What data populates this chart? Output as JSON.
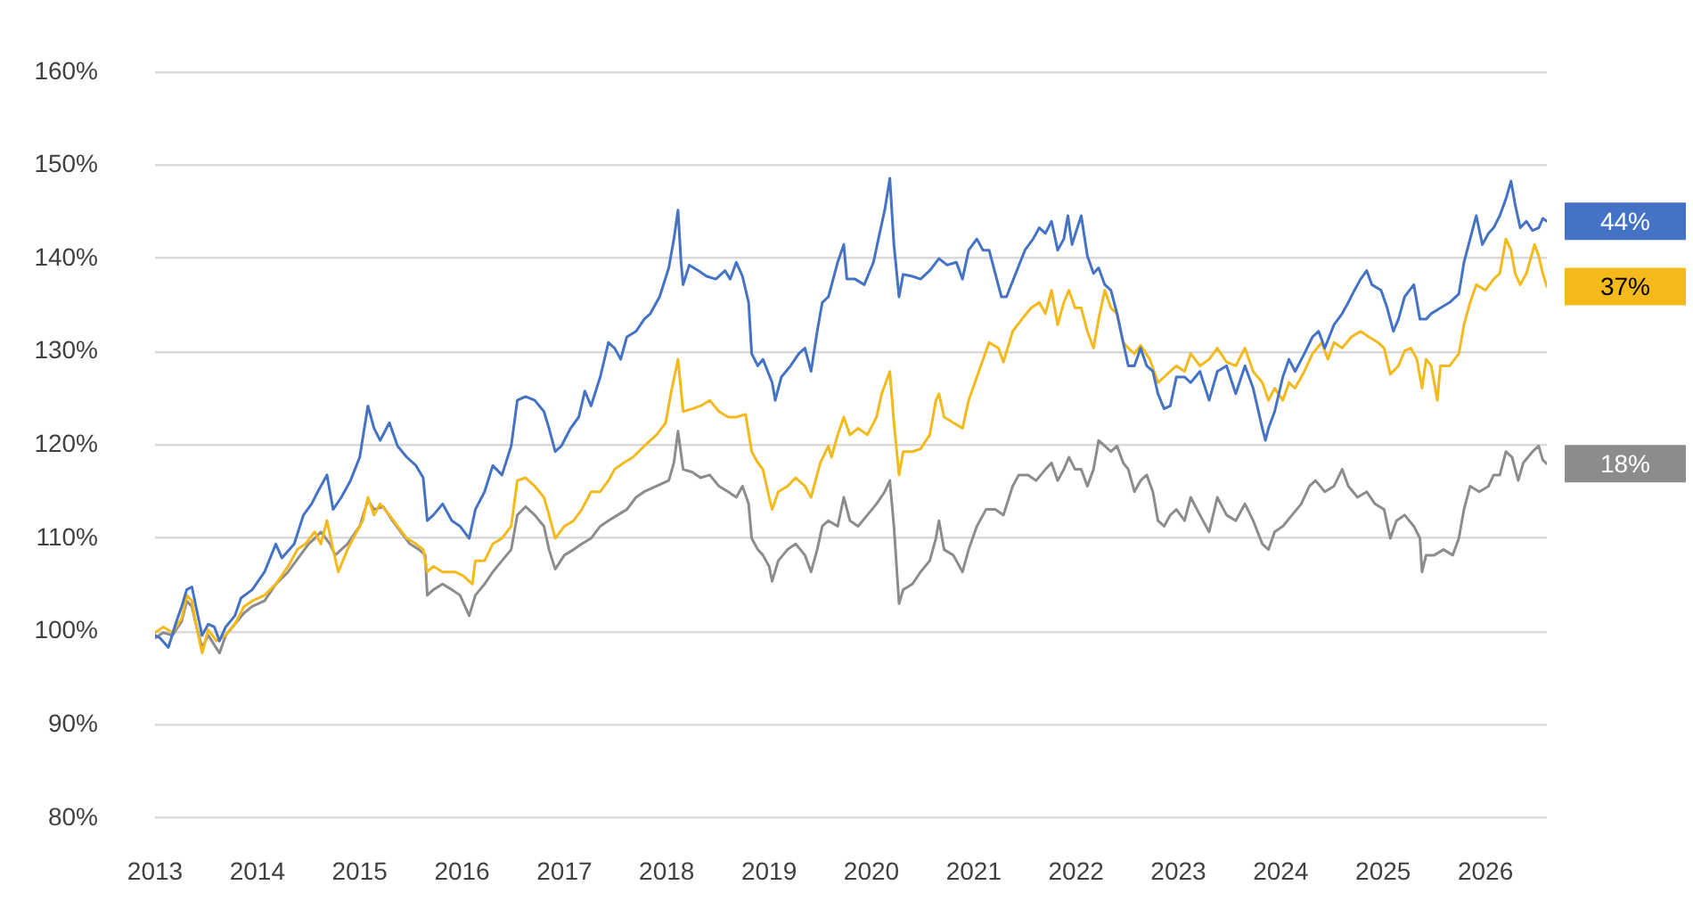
{
  "chart_data": {
    "type": "line",
    "grid": "y",
    "xlim": [
      2013,
      2026.6
    ],
    "xticks": [
      2013,
      2014,
      2015,
      2016,
      2017,
      2018,
      2019,
      2020,
      2021,
      2022,
      2023,
      2024,
      2025,
      2026
    ],
    "ylim": [
      80,
      160
    ],
    "yticks": [
      {
        "value": 80,
        "label": "80%"
      },
      {
        "value": 90,
        "label": "90%"
      },
      {
        "value": 100,
        "label": "100%"
      },
      {
        "value": 110,
        "label": "110%"
      },
      {
        "value": 120,
        "label": "120%"
      },
      {
        "value": 130,
        "label": "130%"
      },
      {
        "value": 140,
        "label": "140%"
      },
      {
        "value": 150,
        "label": "150%"
      },
      {
        "value": 160,
        "label": "160%"
      }
    ],
    "annotations": [
      "44%",
      "37%",
      "18%"
    ],
    "series": [
      {
        "color": "#4472c4",
        "x": [
          2013.0,
          2013.05,
          2013.13,
          2013.2,
          2013.26,
          2013.31,
          2013.36,
          2013.4,
          2013.46,
          2013.52,
          2013.58,
          2013.63,
          2013.69,
          2013.78,
          2013.84,
          2013.95,
          2014.07,
          2014.18,
          2014.24,
          2014.36,
          2014.45,
          2014.53,
          2014.59,
          2014.68,
          2014.74,
          2014.82,
          2014.91,
          2015.0,
          2015.08,
          2015.14,
          2015.2,
          2015.29,
          2015.37,
          2015.46,
          2015.55,
          2015.62,
          2015.66,
          2015.72,
          2015.81,
          2015.9,
          2015.98,
          2016.07,
          2016.13,
          2016.22,
          2016.3,
          2016.39,
          2016.48,
          2016.54,
          2016.62,
          2016.71,
          2016.8,
          2016.85,
          2016.91,
          2016.97,
          2017.06,
          2017.14,
          2017.2,
          2017.26,
          2017.35,
          2017.43,
          2017.49,
          2017.55,
          2017.61,
          2017.7,
          2017.78,
          2017.84,
          2017.93,
          2018.02,
          2018.07,
          2018.11,
          2018.14,
          2018.16,
          2018.22,
          2018.31,
          2018.39,
          2018.48,
          2018.57,
          2018.62,
          2018.68,
          2018.74,
          2018.8,
          2018.83,
          2018.89,
          2018.94,
          2019.03,
          2019.06,
          2019.12,
          2019.21,
          2019.29,
          2019.35,
          2019.41,
          2019.47,
          2019.52,
          2019.58,
          2019.67,
          2019.73,
          2019.76,
          2019.84,
          2019.93,
          2020.02,
          2020.08,
          2020.13,
          2020.18,
          2020.22,
          2020.27,
          2020.31,
          2020.4,
          2020.48,
          2020.57,
          2020.66,
          2020.74,
          2020.83,
          2020.89,
          2020.95,
          2021.03,
          2021.09,
          2021.15,
          2021.21,
          2021.27,
          2021.32,
          2021.41,
          2021.5,
          2021.58,
          2021.64,
          2021.7,
          2021.76,
          2021.82,
          2021.88,
          2021.92,
          2021.96,
          2022.05,
          2022.11,
          2022.17,
          2022.22,
          2022.28,
          2022.34,
          2022.4,
          2022.46,
          2022.51,
          2022.57,
          2022.63,
          2022.69,
          2022.75,
          2022.8,
          2022.86,
          2022.92,
          2022.98,
          2023.06,
          2023.12,
          2023.21,
          2023.3,
          2023.38,
          2023.47,
          2023.56,
          2023.65,
          2023.73,
          2023.82,
          2023.85,
          2023.88,
          2023.94,
          2024.02,
          2024.08,
          2024.14,
          2024.23,
          2024.31,
          2024.37,
          2024.43,
          2024.52,
          2024.6,
          2024.66,
          2024.72,
          2024.78,
          2024.84,
          2024.89,
          2024.98,
          2025.04,
          2025.1,
          2025.15,
          2025.21,
          2025.3,
          2025.36,
          2025.42,
          2025.47,
          2025.56,
          2025.65,
          2025.74,
          2025.79,
          2025.85,
          2025.91,
          2025.97,
          2026.03,
          2026.08,
          2026.14,
          2026.2,
          2026.25,
          2026.29,
          2026.34,
          2026.4,
          2026.46,
          2026.52,
          2026.56,
          2026.6
        ],
        "values": [
          99.6,
          99.3,
          98.3,
          100.8,
          102.7,
          104.5,
          104.8,
          102.7,
          99.6,
          100.8,
          100.5,
          99.0,
          100.5,
          101.7,
          103.6,
          104.5,
          106.4,
          109.4,
          107.9,
          109.4,
          112.5,
          113.7,
          115.0,
          116.8,
          113.1,
          114.4,
          116.2,
          118.7,
          124.2,
          121.8,
          120.5,
          122.4,
          119.9,
          118.7,
          117.8,
          116.5,
          111.9,
          112.5,
          113.7,
          111.9,
          111.3,
          110.0,
          113.1,
          115.0,
          117.8,
          116.8,
          119.9,
          124.8,
          125.2,
          124.8,
          123.6,
          121.8,
          119.3,
          119.9,
          121.8,
          123.0,
          125.8,
          124.2,
          127.3,
          131.0,
          130.4,
          129.2,
          131.6,
          132.2,
          133.5,
          134.1,
          135.9,
          139.0,
          142.1,
          145.2,
          139.6,
          137.2,
          139.3,
          138.7,
          138.1,
          137.8,
          138.7,
          137.8,
          139.6,
          138.1,
          135.3,
          129.8,
          128.5,
          129.2,
          126.7,
          124.8,
          127.3,
          128.5,
          129.8,
          130.4,
          127.9,
          132.2,
          135.3,
          135.9,
          139.6,
          141.5,
          137.8,
          137.8,
          137.2,
          139.6,
          142.7,
          145.2,
          148.6,
          141.5,
          135.9,
          138.3,
          138.1,
          137.8,
          138.7,
          140.0,
          139.3,
          139.6,
          137.8,
          140.9,
          142.1,
          140.9,
          140.9,
          138.4,
          135.9,
          135.9,
          138.4,
          140.9,
          142.1,
          143.3,
          142.7,
          144.0,
          140.9,
          142.1,
          144.6,
          141.5,
          144.6,
          140.3,
          138.4,
          139.0,
          137.2,
          136.6,
          134.1,
          131.0,
          128.5,
          128.5,
          130.4,
          128.5,
          127.9,
          125.5,
          123.9,
          124.2,
          127.3,
          127.3,
          126.7,
          127.9,
          124.8,
          127.9,
          128.5,
          125.5,
          128.5,
          126.1,
          121.8,
          120.5,
          121.8,
          123.6,
          127.3,
          129.2,
          127.9,
          129.8,
          131.6,
          132.2,
          130.4,
          132.9,
          134.1,
          135.3,
          136.6,
          137.8,
          138.7,
          137.2,
          136.6,
          134.7,
          132.2,
          133.5,
          135.9,
          137.2,
          133.5,
          133.5,
          134.1,
          134.7,
          135.3,
          136.2,
          139.6,
          142.1,
          144.6,
          141.5,
          142.7,
          143.3,
          144.6,
          146.4,
          148.3,
          145.8,
          143.3,
          144.0,
          143.0,
          143.3,
          144.3,
          144.0
        ]
      },
      {
        "color": "#f4b91b",
        "x": [
          2013.0,
          2013.08,
          2013.17,
          2013.26,
          2013.31,
          2013.36,
          2013.4,
          2013.46,
          2013.52,
          2013.6,
          2013.69,
          2013.78,
          2013.87,
          2013.95,
          2014.07,
          2014.18,
          2014.3,
          2014.39,
          2014.47,
          2014.56,
          2014.62,
          2014.68,
          2014.74,
          2014.79,
          2014.88,
          2014.97,
          2015.03,
          2015.08,
          2015.14,
          2015.2,
          2015.29,
          2015.37,
          2015.46,
          2015.55,
          2015.62,
          2015.66,
          2015.72,
          2015.81,
          2015.93,
          2016.01,
          2016.1,
          2016.13,
          2016.22,
          2016.3,
          2016.39,
          2016.48,
          2016.54,
          2016.62,
          2016.71,
          2016.8,
          2016.85,
          2016.91,
          2017.0,
          2017.09,
          2017.17,
          2017.26,
          2017.35,
          2017.43,
          2017.49,
          2017.58,
          2017.67,
          2017.78,
          2017.9,
          2017.99,
          2018.04,
          2018.11,
          2018.16,
          2018.25,
          2018.33,
          2018.42,
          2018.51,
          2018.6,
          2018.68,
          2018.77,
          2018.83,
          2018.89,
          2018.94,
          2019.0,
          2019.03,
          2019.09,
          2019.18,
          2019.26,
          2019.35,
          2019.41,
          2019.5,
          2019.58,
          2019.61,
          2019.67,
          2019.73,
          2019.79,
          2019.87,
          2019.96,
          2020.05,
          2020.1,
          2020.18,
          2020.22,
          2020.27,
          2020.31,
          2020.4,
          2020.48,
          2020.57,
          2020.63,
          2020.66,
          2020.71,
          2020.8,
          2020.89,
          2020.95,
          2021.03,
          2021.15,
          2021.24,
          2021.29,
          2021.38,
          2021.47,
          2021.56,
          2021.64,
          2021.7,
          2021.76,
          2021.82,
          2021.88,
          2021.93,
          2021.99,
          2022.05,
          2022.11,
          2022.17,
          2022.22,
          2022.28,
          2022.34,
          2022.4,
          2022.46,
          2022.51,
          2022.57,
          2022.63,
          2022.72,
          2022.8,
          2022.86,
          2022.92,
          2022.98,
          2023.06,
          2023.12,
          2023.21,
          2023.3,
          2023.38,
          2023.47,
          2023.56,
          2023.65,
          2023.73,
          2023.82,
          2023.88,
          2023.94,
          2024.02,
          2024.08,
          2024.14,
          2024.23,
          2024.31,
          2024.4,
          2024.46,
          2024.52,
          2024.6,
          2024.69,
          2024.78,
          2024.86,
          2024.95,
          2025.01,
          2025.07,
          2025.15,
          2025.21,
          2025.27,
          2025.33,
          2025.38,
          2025.42,
          2025.47,
          2025.53,
          2025.56,
          2025.65,
          2025.74,
          2025.79,
          2025.85,
          2025.91,
          2026.0,
          2026.08,
          2026.14,
          2026.2,
          2026.25,
          2026.29,
          2026.34,
          2026.4,
          2026.48,
          2026.52,
          2026.56,
          2026.6
        ],
        "values": [
          99.9,
          100.5,
          99.9,
          101.4,
          103.9,
          103.3,
          100.8,
          97.7,
          100.2,
          99.0,
          99.6,
          100.8,
          102.7,
          103.3,
          103.9,
          105.1,
          107.0,
          108.8,
          109.4,
          110.7,
          109.4,
          111.9,
          108.8,
          106.4,
          108.8,
          110.7,
          111.9,
          114.4,
          112.5,
          113.7,
          112.5,
          111.3,
          110.0,
          109.4,
          108.8,
          106.4,
          107.0,
          106.4,
          106.4,
          106.0,
          105.1,
          107.6,
          107.6,
          109.4,
          110.0,
          111.3,
          116.2,
          116.5,
          115.6,
          114.4,
          112.5,
          110.0,
          111.3,
          111.9,
          113.1,
          115.0,
          115.0,
          116.2,
          117.4,
          118.1,
          118.7,
          119.9,
          121.1,
          122.4,
          125.5,
          129.2,
          123.6,
          123.9,
          124.2,
          124.8,
          123.6,
          123.0,
          123.0,
          123.3,
          119.3,
          118.1,
          117.4,
          114.4,
          113.1,
          115.0,
          115.6,
          116.5,
          115.6,
          114.4,
          118.1,
          119.9,
          118.7,
          121.1,
          123.0,
          121.1,
          121.8,
          121.1,
          123.0,
          125.5,
          127.9,
          122.4,
          116.8,
          119.3,
          119.3,
          119.6,
          121.1,
          124.8,
          125.5,
          123.0,
          122.4,
          121.8,
          124.8,
          127.3,
          131.0,
          130.4,
          128.9,
          132.2,
          133.5,
          134.7,
          135.3,
          134.1,
          136.6,
          132.9,
          135.3,
          136.6,
          134.7,
          134.7,
          132.2,
          130.4,
          133.5,
          136.6,
          134.7,
          134.1,
          131.0,
          130.4,
          129.8,
          130.7,
          129.2,
          126.7,
          127.3,
          127.9,
          128.5,
          127.9,
          129.8,
          128.5,
          129.2,
          130.4,
          128.9,
          128.5,
          130.4,
          127.9,
          126.7,
          124.8,
          126.1,
          124.8,
          126.7,
          126.1,
          127.9,
          129.8,
          131.0,
          129.2,
          131.0,
          130.4,
          131.6,
          132.2,
          131.6,
          131.0,
          130.4,
          127.6,
          128.5,
          130.1,
          130.4,
          129.2,
          126.1,
          129.2,
          128.5,
          124.8,
          128.5,
          128.5,
          129.8,
          132.9,
          135.3,
          137.2,
          136.6,
          137.8,
          138.4,
          142.1,
          140.9,
          138.4,
          137.2,
          138.4,
          141.5,
          140.3,
          138.4,
          137.0
        ]
      },
      {
        "color": "#8c8c8c",
        "x": [
          2013.0,
          2013.08,
          2013.17,
          2013.26,
          2013.31,
          2013.36,
          2013.4,
          2013.46,
          2013.52,
          2013.63,
          2013.69,
          2013.78,
          2013.87,
          2013.95,
          2014.07,
          2014.18,
          2014.3,
          2014.42,
          2014.5,
          2014.56,
          2014.62,
          2014.71,
          2014.76,
          2014.88,
          2015.0,
          2015.08,
          2015.14,
          2015.23,
          2015.32,
          2015.4,
          2015.49,
          2015.58,
          2015.64,
          2015.66,
          2015.72,
          2015.81,
          2015.9,
          2015.98,
          2016.07,
          2016.13,
          2016.22,
          2016.3,
          2016.39,
          2016.48,
          2016.54,
          2016.62,
          2016.71,
          2016.8,
          2016.85,
          2016.91,
          2017.0,
          2017.09,
          2017.17,
          2017.26,
          2017.35,
          2017.43,
          2017.52,
          2017.61,
          2017.7,
          2017.78,
          2017.9,
          2018.02,
          2018.07,
          2018.11,
          2018.16,
          2018.25,
          2018.33,
          2018.42,
          2018.51,
          2018.6,
          2018.68,
          2018.74,
          2018.8,
          2018.83,
          2018.89,
          2018.94,
          2019.0,
          2019.03,
          2019.09,
          2019.18,
          2019.26,
          2019.35,
          2019.41,
          2019.47,
          2019.52,
          2019.58,
          2019.67,
          2019.73,
          2019.79,
          2019.87,
          2019.96,
          2020.05,
          2020.13,
          2020.18,
          2020.22,
          2020.27,
          2020.31,
          2020.4,
          2020.48,
          2020.57,
          2020.63,
          2020.66,
          2020.71,
          2020.8,
          2020.89,
          2020.95,
          2021.03,
          2021.12,
          2021.21,
          2021.29,
          2021.38,
          2021.44,
          2021.53,
          2021.61,
          2021.7,
          2021.76,
          2021.82,
          2021.88,
          2021.93,
          2021.99,
          2022.05,
          2022.11,
          2022.17,
          2022.22,
          2022.28,
          2022.34,
          2022.4,
          2022.46,
          2022.51,
          2022.57,
          2022.63,
          2022.69,
          2022.75,
          2022.8,
          2022.86,
          2022.92,
          2022.98,
          2023.06,
          2023.12,
          2023.21,
          2023.3,
          2023.38,
          2023.47,
          2023.56,
          2023.65,
          2023.73,
          2023.82,
          2023.88,
          2023.94,
          2024.02,
          2024.11,
          2024.2,
          2024.28,
          2024.34,
          2024.43,
          2024.52,
          2024.6,
          2024.66,
          2024.75,
          2024.84,
          2024.92,
          2025.01,
          2025.07,
          2025.13,
          2025.21,
          2025.3,
          2025.36,
          2025.38,
          2025.42,
          2025.5,
          2025.59,
          2025.68,
          2025.74,
          2025.79,
          2025.85,
          2025.94,
          2026.03,
          2026.08,
          2026.14,
          2026.2,
          2026.26,
          2026.32,
          2026.37,
          2026.46,
          2026.52,
          2026.56,
          2026.6
        ],
        "values": [
          99.3,
          99.9,
          99.6,
          101.1,
          103.3,
          102.7,
          100.8,
          98.3,
          99.6,
          97.7,
          99.6,
          100.8,
          102.0,
          102.7,
          103.3,
          105.1,
          106.4,
          108.2,
          109.4,
          110.0,
          110.7,
          109.4,
          108.2,
          109.4,
          111.3,
          114.1,
          113.1,
          113.4,
          111.9,
          110.7,
          109.4,
          108.8,
          108.2,
          103.9,
          104.5,
          105.1,
          104.5,
          103.9,
          101.7,
          103.9,
          105.1,
          106.4,
          107.6,
          108.8,
          112.5,
          113.4,
          112.5,
          111.3,
          108.8,
          106.7,
          108.2,
          108.8,
          109.4,
          110.0,
          111.3,
          111.9,
          112.5,
          113.1,
          114.4,
          115.0,
          115.6,
          116.2,
          118.1,
          121.5,
          117.4,
          117.1,
          116.5,
          116.8,
          115.6,
          115.0,
          114.4,
          115.6,
          113.7,
          110.0,
          108.8,
          108.2,
          107.0,
          105.4,
          107.6,
          108.8,
          109.4,
          108.2,
          106.4,
          108.8,
          111.3,
          111.9,
          111.3,
          114.4,
          111.9,
          111.3,
          112.5,
          113.7,
          115.0,
          116.2,
          111.3,
          103.0,
          104.5,
          105.1,
          106.4,
          107.6,
          110.0,
          111.9,
          108.8,
          108.2,
          106.4,
          108.8,
          111.3,
          113.1,
          113.1,
          112.5,
          115.6,
          116.8,
          116.8,
          116.2,
          117.4,
          118.1,
          116.2,
          117.4,
          118.7,
          117.4,
          117.4,
          115.6,
          117.4,
          120.5,
          119.9,
          119.3,
          119.9,
          118.1,
          117.4,
          115.0,
          116.2,
          116.8,
          115.0,
          111.9,
          111.3,
          112.5,
          113.1,
          111.9,
          114.4,
          112.5,
          110.7,
          114.4,
          112.5,
          111.9,
          113.7,
          111.9,
          109.4,
          108.8,
          110.7,
          111.3,
          112.5,
          113.7,
          115.6,
          116.2,
          115.0,
          115.6,
          117.4,
          115.6,
          114.4,
          115.0,
          113.7,
          113.1,
          110.0,
          111.9,
          112.5,
          111.3,
          110.0,
          106.4,
          108.2,
          108.2,
          108.8,
          108.2,
          110.0,
          113.1,
          115.6,
          115.0,
          115.6,
          116.8,
          116.8,
          119.3,
          118.7,
          116.2,
          118.1,
          119.3,
          119.9,
          118.4,
          118.0
        ]
      }
    ]
  }
}
